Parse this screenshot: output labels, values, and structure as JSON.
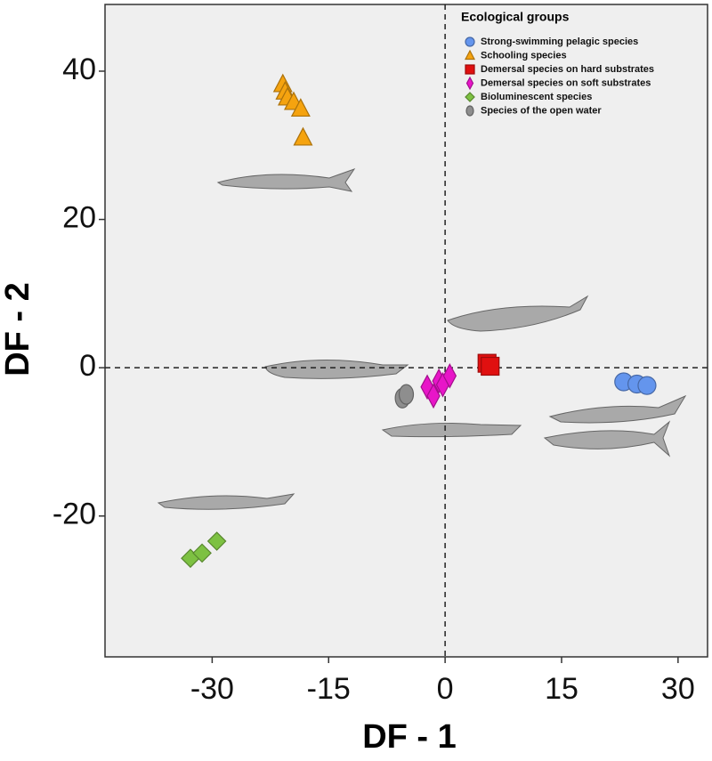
{
  "chart_data": {
    "type": "scatter",
    "xlabel": "DF - 1",
    "ylabel": "DF - 2",
    "legend_title": "Ecological groups",
    "legend": "top-right",
    "xlim": [
      -43.8,
      33.8
    ],
    "ylim": [
      -39,
      49
    ],
    "xticks": [
      -30,
      -15,
      0,
      15,
      30
    ],
    "yticks": [
      -20,
      0,
      20,
      40
    ],
    "reference_lines": {
      "x": 0,
      "y": 0
    },
    "series": [
      {
        "name": "Strong-swimming pelagic species",
        "color": "#6495ED",
        "marker": "circle",
        "x": [
          23,
          24.7,
          26
        ],
        "y": [
          -1.9,
          -2.2,
          -2.4
        ]
      },
      {
        "name": "Schooling species",
        "color": "#F5A30F",
        "marker": "triangle",
        "x": [
          -20.9,
          -20.6,
          -20.3,
          -19.5,
          -18.6,
          -18.3
        ],
        "y": [
          38.2,
          37.2,
          36.4,
          35.8,
          34.9,
          31.0
        ]
      },
      {
        "name": "Demersal species on hard substrates",
        "color": "#E01010",
        "marker": "square",
        "x": [
          5.4,
          5.8
        ],
        "y": [
          0.6,
          0.2
        ]
      },
      {
        "name": "Demersal species on soft substrates",
        "color": "#E815C8",
        "marker": "diamond",
        "x": [
          -2.3,
          -1.5,
          -0.8,
          -0.3,
          0.6
        ],
        "y": [
          -2.6,
          -3.8,
          -1.8,
          -2.3,
          -1.1
        ]
      },
      {
        "name": "Bioluminescent species",
        "color": "#7DC142",
        "marker": "diamond-wide",
        "x": [
          -32.8,
          -31.3,
          -29.4
        ],
        "y": [
          -25.7,
          -25.0,
          -23.4
        ]
      },
      {
        "name": "Species of the open water",
        "color": "#8E8E8E",
        "marker": "ellipse",
        "x": [
          -5.5,
          -5.0
        ],
        "y": [
          -4.1,
          -3.6
        ]
      }
    ]
  }
}
